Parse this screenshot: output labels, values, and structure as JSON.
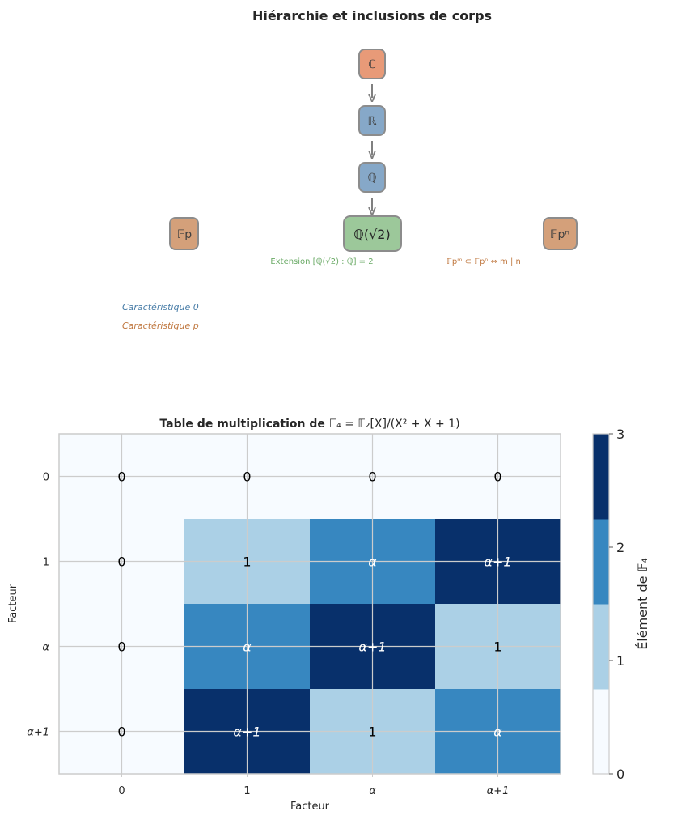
{
  "hierarchy": {
    "title": "Hiérarchie et inclusions de corps",
    "nodes": [
      {
        "id": "C",
        "label": "ℂ",
        "color": "#e89a78"
      },
      {
        "id": "R",
        "label": "ℝ",
        "color": "#86a8c8"
      },
      {
        "id": "Q",
        "label": "ℚ",
        "color": "#86a8c8"
      },
      {
        "id": "Qsqrt2",
        "label": "ℚ(√2)",
        "color": "#9cc89a"
      },
      {
        "id": "Fp",
        "label": "𝔽p",
        "color": "#d4a07a"
      },
      {
        "id": "Fpn",
        "label": "𝔽pⁿ",
        "color": "#d4a07a"
      }
    ],
    "annotations": {
      "extension": "Extension [ℚ(√2) : ℚ] = 2",
      "subfield": "𝔽pᵐ ⊂ 𝔽pⁿ ⇔ m | n"
    },
    "legend": {
      "char0": "Caractéristique 0",
      "charp": "Caractéristique p",
      "char0_color": "#4a7ea8",
      "charp_color": "#c07840"
    }
  },
  "chart_data": {
    "type": "heatmap",
    "title_text": "Table de multiplication de ",
    "title_math": "𝔽₄ = 𝔽₂[X]/(X² + X + 1)",
    "xlabel": "Facteur",
    "ylabel": "Facteur",
    "x_categories": [
      "0",
      "1",
      "α",
      "α+1"
    ],
    "y_categories": [
      "0",
      "1",
      "α",
      "α+1"
    ],
    "values": [
      [
        0,
        0,
        0,
        0
      ],
      [
        0,
        1,
        2,
        3
      ],
      [
        0,
        2,
        3,
        1
      ],
      [
        0,
        3,
        1,
        2
      ]
    ],
    "cell_labels": [
      [
        "0",
        "0",
        "0",
        "0"
      ],
      [
        "0",
        "1",
        "α",
        "α+1"
      ],
      [
        "0",
        "α",
        "α+1",
        "1"
      ],
      [
        "0",
        "α+1",
        "1",
        "α"
      ]
    ],
    "colorbar": {
      "label": "Élément de 𝔽₄",
      "ticks": [
        "0",
        "1",
        "2",
        "3"
      ],
      "range": [
        0,
        3
      ]
    },
    "colors": [
      "#f7fbff",
      "#abd0e6",
      "#3787c0",
      "#08306b"
    ]
  }
}
